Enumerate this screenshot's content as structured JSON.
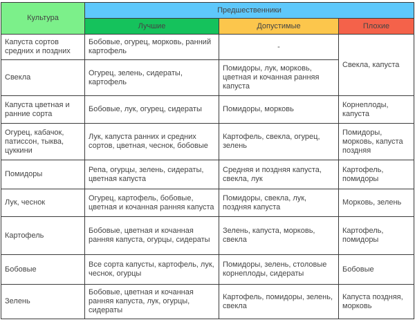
{
  "header": {
    "culture": "Культура",
    "predecessors": "Предшественники",
    "best": "Лучшие",
    "acceptable": "Допустимые",
    "bad": "Плохие"
  },
  "colors": {
    "culture_header": "#7cf08a",
    "predecessors_header": "#5ec8fb",
    "best_header": "#15c25c",
    "acceptable_header": "#fcc64c",
    "bad_header": "#f4624a"
  },
  "rows": [
    {
      "culture": "Капуста сортов средних и поздних",
      "best": "Бобовые, огурец, морковь, ранний картофель",
      "acceptable": "-",
      "bad": "Свекла, капуста"
    },
    {
      "culture": "Свекла",
      "best": "Огурец, зелень, сидераты, картофель",
      "acceptable": "Помидоры, лук, морковь, цветная и кочанная ранняя капуста"
    },
    {
      "culture": "Капуста цветная и ранние сорта",
      "best": "Бобовые, лук, огурец, сидераты",
      "acceptable": "Помидоры, морковь",
      "bad": "Корнеплоды, капуста"
    },
    {
      "culture": "Огурец, кабачок, патиссон, тыква, цуккини",
      "best": "Лук, капуста ранних и средних сортов, цветная, чеснок, бобовые",
      "acceptable": "Картофель, свекла, огурец, зелень",
      "bad": "Помидоры, морковь, капуста поздняя"
    },
    {
      "culture": "Помидоры",
      "best": "Репа, огурцы, зелень, сидераты, цветная капуста",
      "acceptable": "Средняя и поздняя капуста, свекла, лук",
      "bad": "Картофель, помидоры"
    },
    {
      "culture": "Лук, чеснок",
      "best": "Огурец, картофель, бобовые, цветная и кочанная ранняя капуста",
      "acceptable": "Помидоры, свекла, лук, поздняя капуста",
      "bad": "Морковь, зелень"
    },
    {
      "culture": "Картофель",
      "best": "Бобовые, цветная и кочанная ранняя капуста, огурцы, сидераты",
      "acceptable": "Зелень, капуста, морковь, свекла",
      "bad": "Картофель, помидоры"
    },
    {
      "culture": "Бобовые",
      "best": "Все сорта капусты, картофель, лук, чеснок, огурцы",
      "acceptable": "Помидоры, зелень, столовые корнеплоды, сидераты",
      "bad": "Бобовые"
    },
    {
      "culture": "Зелень",
      "best": "Бобовые, цветная и кочанная ранняя капуста, лук, огурцы, сидераты",
      "acceptable": "Картофель, помидоры, зелень, свекла",
      "bad": "Капуста поздняя, морковь"
    }
  ]
}
